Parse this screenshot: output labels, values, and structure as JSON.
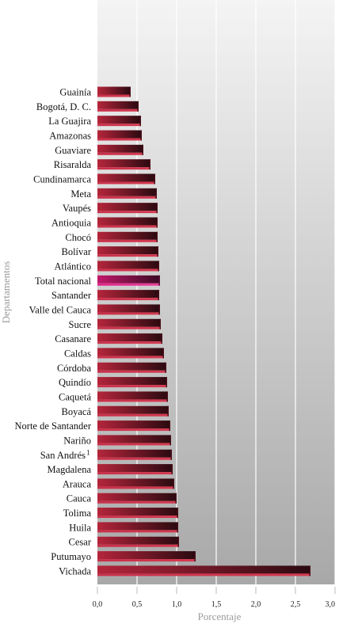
{
  "chart_data": {
    "type": "bar",
    "orientation": "horizontal",
    "title": "",
    "xlabel": "Porcentaje",
    "ylabel": "Departamentos",
    "xlim": [
      0,
      3
    ],
    "xticks": [
      "0,0",
      "0,5",
      "1,0",
      "1,5",
      "2,0",
      "2,5",
      "3,0"
    ],
    "grid": "vertical",
    "categories": [
      "Guainía",
      "Bogotá, D. C.",
      "La Guajira",
      "Amazonas",
      "Guaviare",
      "Risaralda",
      "Cundinamarca",
      "Meta",
      "Vaupés",
      "Antioquia",
      "Chocó",
      "Bolívar",
      "Atlántico",
      "Total nacional",
      "Santander",
      "Valle del Cauca",
      "Sucre",
      "Casanare",
      "Caldas",
      "Córdoba",
      "Quindío",
      "Caquetá",
      "Boyacá",
      "Norte de Santander",
      "Nariño",
      "San Andrés",
      "Magdalena",
      "Arauca",
      "Cauca",
      "Tolima",
      "Huila",
      "Cesar",
      "Putumayo",
      "Vichada"
    ],
    "values": [
      0.42,
      0.52,
      0.55,
      0.56,
      0.58,
      0.67,
      0.73,
      0.75,
      0.76,
      0.76,
      0.76,
      0.77,
      0.78,
      0.79,
      0.78,
      0.79,
      0.8,
      0.82,
      0.84,
      0.87,
      0.88,
      0.89,
      0.9,
      0.92,
      0.93,
      0.94,
      0.95,
      0.97,
      1.0,
      1.02,
      1.02,
      1.03,
      1.24,
      2.69
    ],
    "highlight": "Total nacional",
    "footnote_marker": {
      "category": "San Andrés",
      "mark": "1"
    },
    "colors": {
      "bar_light": "#b5253b",
      "bar_dark": "#2a0a10",
      "highlight_light": "#c2186b",
      "highlight_dark": "#3a0a24",
      "background_top": "#f4f4f4",
      "background_bottom": "#a8a8a8",
      "grid": "#ffffff"
    }
  }
}
